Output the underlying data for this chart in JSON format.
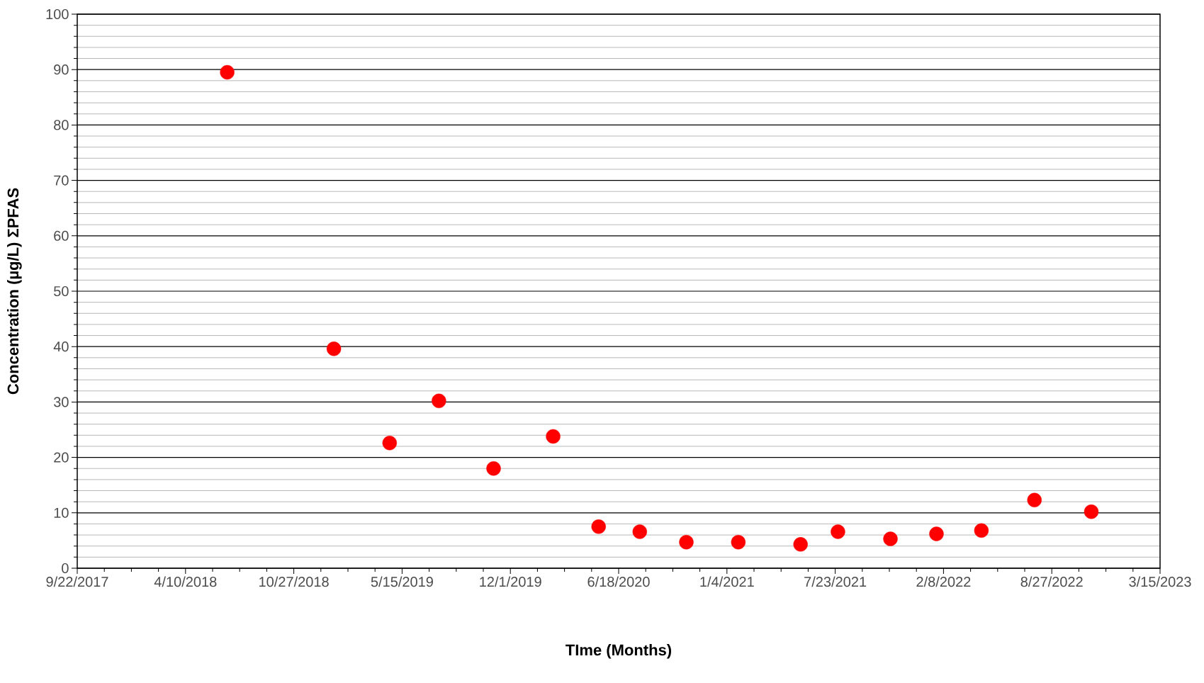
{
  "chart_data": {
    "type": "scatter",
    "xlabel": "TIme (Months)",
    "ylabel": "Concentration (µg/L) ΣPFAS",
    "x": [
      "2018-06-26",
      "2019-01-09",
      "2019-04-22",
      "2019-07-22",
      "2019-10-31",
      "2020-02-18",
      "2020-05-12",
      "2020-07-27",
      "2020-10-21",
      "2021-01-25",
      "2021-05-20",
      "2021-07-28",
      "2021-11-02",
      "2022-01-26",
      "2022-04-19",
      "2022-07-26",
      "2022-11-08"
    ],
    "values": [
      89.5,
      39.6,
      22.6,
      30.2,
      18.0,
      23.8,
      7.5,
      6.6,
      4.7,
      4.7,
      4.3,
      6.6,
      5.3,
      6.2,
      6.8,
      12.3,
      10.2
    ],
    "color": "#ff0000",
    "marker": "circle",
    "grid": "y",
    "xlim": [
      "2017-09-22",
      "2023-03-15"
    ],
    "xticks": [
      {
        "value": "2017-09-22",
        "label": "9/22/2017"
      },
      {
        "value": "2018-04-10",
        "label": "4/10/2018"
      },
      {
        "value": "2018-10-27",
        "label": "10/27/2018"
      },
      {
        "value": "2019-05-15",
        "label": "5/15/2019"
      },
      {
        "value": "2019-12-01",
        "label": "12/1/2019"
      },
      {
        "value": "2020-06-18",
        "label": "6/18/2020"
      },
      {
        "value": "2021-01-04",
        "label": "1/4/2021"
      },
      {
        "value": "2021-07-23",
        "label": "7/23/2021"
      },
      {
        "value": "2022-02-08",
        "label": "2/8/2022"
      },
      {
        "value": "2022-08-27",
        "label": "8/27/2022"
      },
      {
        "value": "2023-03-15",
        "label": "3/15/2023"
      }
    ],
    "ylim": [
      0,
      100
    ],
    "yticks": [
      0,
      10,
      20,
      30,
      40,
      50,
      60,
      70,
      80,
      90,
      100
    ]
  }
}
